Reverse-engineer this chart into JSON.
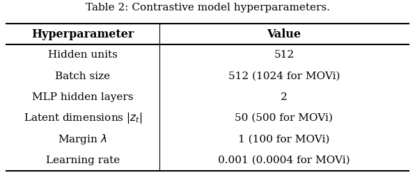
{
  "title": "Table 2: Contrastive model hyperparameters.",
  "col_headers": [
    "Hyperparameter",
    "Value"
  ],
  "rows": [
    [
      "Hidden units",
      "512"
    ],
    [
      "Batch size",
      "512 (1024 for MOVi)"
    ],
    [
      "MLP hidden layers",
      "2"
    ],
    [
      "Latent dimensions $|z_t|$",
      "50 (500 for MOVi)"
    ],
    [
      "Margin $\\lambda$",
      "1 (100 for MOVi)"
    ],
    [
      "Learning rate",
      "0.001 (0.0004 for MOVi)"
    ]
  ],
  "col_split": 0.38,
  "header_fontsize": 11.5,
  "row_fontsize": 11.0,
  "title_fontsize": 11.0,
  "bg_color": "#ffffff"
}
